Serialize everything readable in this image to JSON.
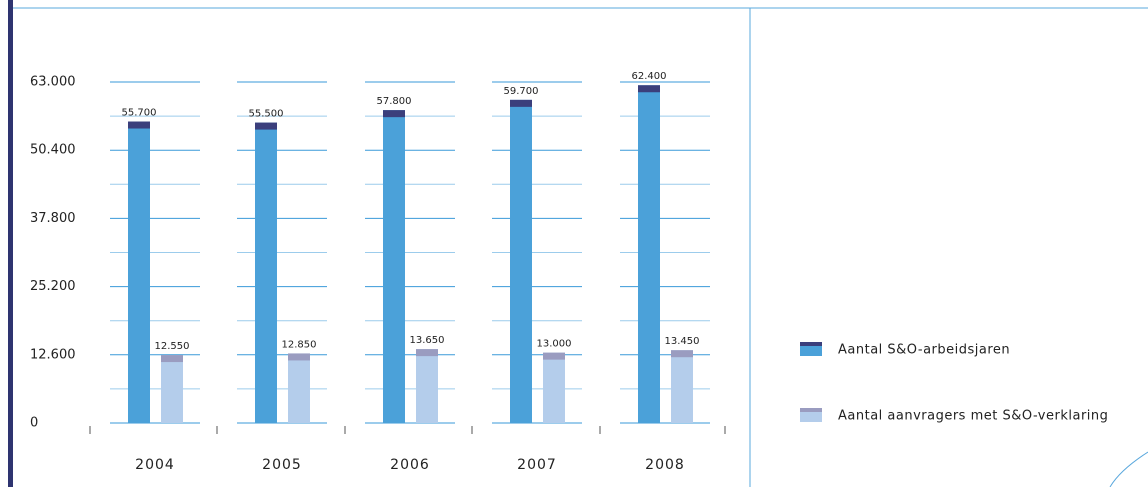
{
  "chart_data": {
    "type": "bar",
    "categories": [
      "2004",
      "2005",
      "2006",
      "2007",
      "2008"
    ],
    "series": [
      {
        "name": "Aantal S&O-arbeidsjaren",
        "color": "#4ba1d9",
        "cap_color": "#3b3f7c",
        "values": [
          55700,
          55500,
          57800,
          59700,
          62400
        ],
        "value_labels": [
          "55.700",
          "55.500",
          "57.800",
          "59.700",
          "62.400"
        ]
      },
      {
        "name": "Aantal aanvragers met S&O-verklaring",
        "color": "#b4cdeb",
        "cap_color": "#9a9cc0",
        "values": [
          12550,
          12850,
          13650,
          13000,
          13450
        ],
        "value_labels": [
          "12.550",
          "12.850",
          "13.650",
          "13.000",
          "13.450"
        ]
      }
    ],
    "ylim": [
      0,
      63000
    ],
    "yticks": [
      0,
      {
        "value": 12600,
        "label": "12.600"
      },
      {
        "value": 25200,
        "label": "25.200"
      },
      {
        "value": 37800,
        "label": "37.800"
      },
      {
        "value": 50400,
        "label": "50.400"
      },
      {
        "value": 63000,
        "label": "63.000"
      }
    ],
    "grid": true,
    "grid_color": "#3a9ad9"
  }
}
